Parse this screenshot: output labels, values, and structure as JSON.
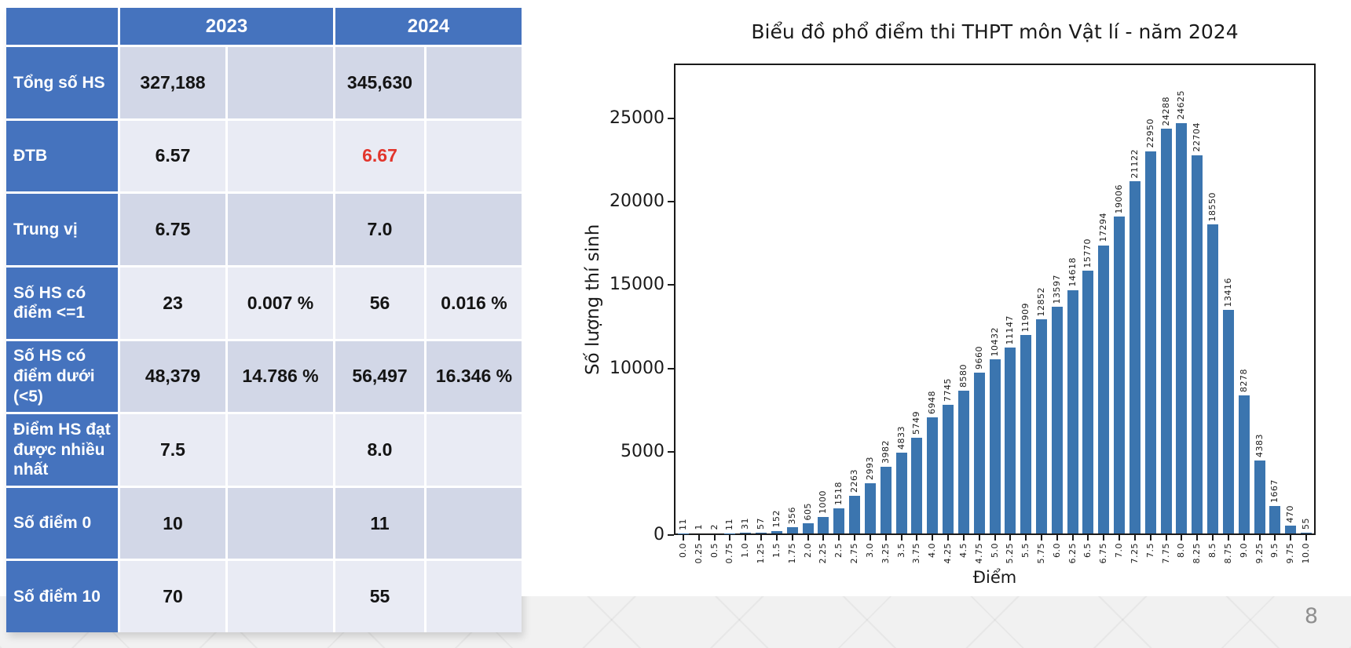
{
  "page": {
    "number": "8"
  },
  "colors": {
    "accent": "#4573BE",
    "band_dark": "#D2D7E7",
    "band_light": "#E9EBF4",
    "red": "#E2352C",
    "bar": "#3B75AF",
    "band_bg": "#F1F1F1"
  },
  "table": {
    "year_headers": [
      "2023",
      "2024"
    ],
    "rows": [
      {
        "label": "Tổng số HS",
        "cells": [
          "327,188",
          "",
          "345,630",
          ""
        ],
        "red_cells": []
      },
      {
        "label": "ĐTB",
        "cells": [
          "6.57",
          "",
          "6.67",
          ""
        ],
        "red_cells": [
          2
        ]
      },
      {
        "label": "Trung vị",
        "cells": [
          "6.75",
          "",
          "7.0",
          ""
        ],
        "red_cells": []
      },
      {
        "label": "Số HS có điểm <=1",
        "cells": [
          "23",
          "0.007 %",
          "56",
          "0.016 %"
        ],
        "red_cells": []
      },
      {
        "label": "Số HS có điểm dưới (<5)",
        "cells": [
          "48,379",
          "14.786 %",
          "56,497",
          "16.346 %"
        ],
        "red_cells": []
      },
      {
        "label": "Điểm HS đạt được nhiều nhất",
        "cells": [
          "7.5",
          "",
          "8.0",
          ""
        ],
        "red_cells": []
      },
      {
        "label": "Số điểm 0",
        "cells": [
          "10",
          "",
          "11",
          ""
        ],
        "red_cells": []
      },
      {
        "label": "Số điểm 10",
        "cells": [
          "70",
          "",
          "55",
          ""
        ],
        "red_cells": []
      }
    ]
  },
  "chart_data": {
    "type": "bar",
    "title": "Biểu đồ phổ điểm thi THPT môn Vật lí - năm 2024",
    "xlabel": "Điểm",
    "ylabel": "Số lượng thí sinh",
    "grid": false,
    "legend": null,
    "ylim": [
      0,
      28300
    ],
    "yticks": [
      0,
      5000,
      10000,
      15000,
      20000,
      25000
    ],
    "categories": [
      "0.0",
      "0.25",
      "0.5",
      "0.75",
      "1.0",
      "1.25",
      "1.5",
      "1.75",
      "2.0",
      "2.25",
      "2.5",
      "2.75",
      "3.0",
      "3.25",
      "3.5",
      "3.75",
      "4.0",
      "4.25",
      "4.5",
      "4.75",
      "5.0",
      "5.25",
      "5.5",
      "5.75",
      "6.0",
      "6.25",
      "6.5",
      "6.75",
      "7.0",
      "7.25",
      "7.5",
      "7.75",
      "8.0",
      "8.25",
      "8.5",
      "8.75",
      "9.0",
      "9.25",
      "9.5",
      "9.75",
      "10.0"
    ],
    "values": [
      11,
      1,
      2,
      11,
      31,
      57,
      152,
      356,
      605,
      1000,
      1518,
      2263,
      2993,
      3982,
      4833,
      5749,
      6948,
      7745,
      8580,
      9660,
      10432,
      11147,
      11909,
      12852,
      13597,
      14618,
      15770,
      17294,
      19006,
      21122,
      22950,
      24288,
      24625,
      22704,
      18550,
      13416,
      8278,
      4383,
      1667,
      470,
      55
    ]
  }
}
